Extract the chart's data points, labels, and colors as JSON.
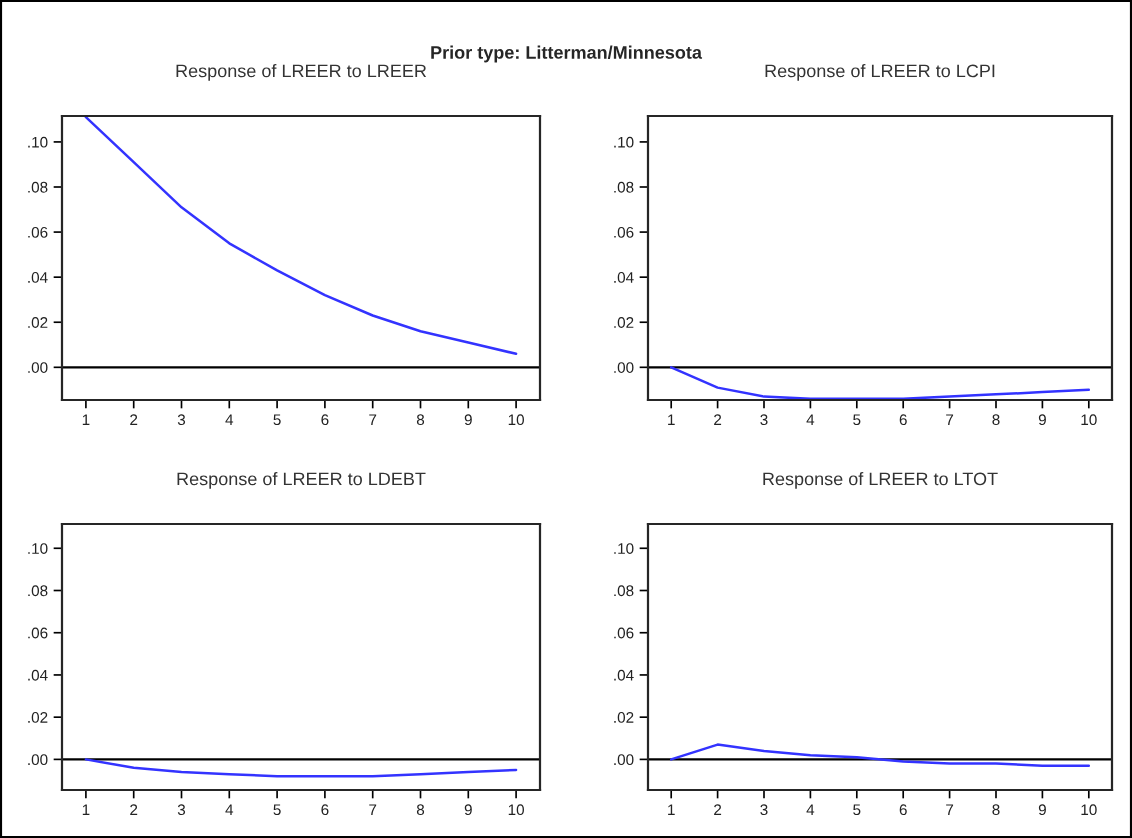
{
  "chart_data": [
    {
      "type": "line",
      "title": "Response of LREER to LREER",
      "annotations": [
        "Prior type: Litterman/Minnesota"
      ],
      "x": [
        1,
        2,
        3,
        4,
        5,
        6,
        7,
        8,
        9,
        10
      ],
      "series": [
        {
          "color": "#3333ff",
          "values": [
            0.111,
            0.091,
            0.071,
            0.055,
            0.043,
            0.032,
            0.023,
            0.016,
            0.011,
            0.006
          ]
        }
      ],
      "xlim": [
        0.5,
        10.5
      ],
      "xticks": [
        1,
        2,
        3,
        4,
        5,
        6,
        7,
        8,
        9,
        10
      ],
      "ylim": [
        -0.0145,
        0.1115
      ],
      "yticks": [
        {
          "value": 0.0,
          "label": ".00"
        },
        {
          "value": 0.02,
          "label": ".02"
        },
        {
          "value": 0.04,
          "label": ".04"
        },
        {
          "value": 0.06,
          "label": ".06"
        },
        {
          "value": 0.08,
          "label": ".08"
        },
        {
          "value": 0.1,
          "label": ".10"
        }
      ],
      "ref_lines": [
        {
          "axis": "y",
          "value": 0,
          "color": "#000000"
        }
      ],
      "grid": false,
      "legend": false
    },
    {
      "type": "line",
      "title": "Response of LREER to LCPI",
      "x": [
        1,
        2,
        3,
        4,
        5,
        6,
        7,
        8,
        9,
        10
      ],
      "series": [
        {
          "color": "#3333ff",
          "values": [
            0.0,
            -0.009,
            -0.013,
            -0.014,
            -0.014,
            -0.014,
            -0.013,
            -0.012,
            -0.011,
            -0.01
          ]
        }
      ],
      "xlim": [
        0.5,
        10.5
      ],
      "xticks": [
        1,
        2,
        3,
        4,
        5,
        6,
        7,
        8,
        9,
        10
      ],
      "ylim": [
        -0.0145,
        0.1115
      ],
      "yticks": [
        {
          "value": 0.0,
          "label": ".00"
        },
        {
          "value": 0.02,
          "label": ".02"
        },
        {
          "value": 0.04,
          "label": ".04"
        },
        {
          "value": 0.06,
          "label": ".06"
        },
        {
          "value": 0.08,
          "label": ".08"
        },
        {
          "value": 0.1,
          "label": ".10"
        }
      ],
      "ref_lines": [
        {
          "axis": "y",
          "value": 0,
          "color": "#000000"
        }
      ],
      "grid": false,
      "legend": false
    },
    {
      "type": "line",
      "title": "Response of LREER to LDEBT",
      "x": [
        1,
        2,
        3,
        4,
        5,
        6,
        7,
        8,
        9,
        10
      ],
      "series": [
        {
          "color": "#3333ff",
          "values": [
            0.0,
            -0.004,
            -0.006,
            -0.007,
            -0.008,
            -0.008,
            -0.008,
            -0.007,
            -0.006,
            -0.005
          ]
        }
      ],
      "xlim": [
        0.5,
        10.5
      ],
      "xticks": [
        1,
        2,
        3,
        4,
        5,
        6,
        7,
        8,
        9,
        10
      ],
      "ylim": [
        -0.0145,
        0.1115
      ],
      "yticks": [
        {
          "value": 0.0,
          "label": ".00"
        },
        {
          "value": 0.02,
          "label": ".02"
        },
        {
          "value": 0.04,
          "label": ".04"
        },
        {
          "value": 0.06,
          "label": ".06"
        },
        {
          "value": 0.08,
          "label": ".08"
        },
        {
          "value": 0.1,
          "label": ".10"
        }
      ],
      "ref_lines": [
        {
          "axis": "y",
          "value": 0,
          "color": "#000000"
        }
      ],
      "grid": false,
      "legend": false
    },
    {
      "type": "line",
      "title": "Response of LREER to LTOT",
      "x": [
        1,
        2,
        3,
        4,
        5,
        6,
        7,
        8,
        9,
        10
      ],
      "series": [
        {
          "color": "#3333ff",
          "values": [
            0.0,
            0.007,
            0.004,
            0.002,
            0.001,
            -0.001,
            -0.002,
            -0.002,
            -0.003,
            -0.003
          ]
        }
      ],
      "xlim": [
        0.5,
        10.5
      ],
      "xticks": [
        1,
        2,
        3,
        4,
        5,
        6,
        7,
        8,
        9,
        10
      ],
      "ylim": [
        -0.0145,
        0.1115
      ],
      "yticks": [
        {
          "value": 0.0,
          "label": ".00"
        },
        {
          "value": 0.02,
          "label": ".02"
        },
        {
          "value": 0.04,
          "label": ".04"
        },
        {
          "value": 0.06,
          "label": ".06"
        },
        {
          "value": 0.08,
          "label": ".08"
        },
        {
          "value": 0.1,
          "label": ".10"
        }
      ],
      "ref_lines": [
        {
          "axis": "y",
          "value": 0,
          "color": "#000000"
        }
      ],
      "grid": false,
      "legend": false
    }
  ]
}
